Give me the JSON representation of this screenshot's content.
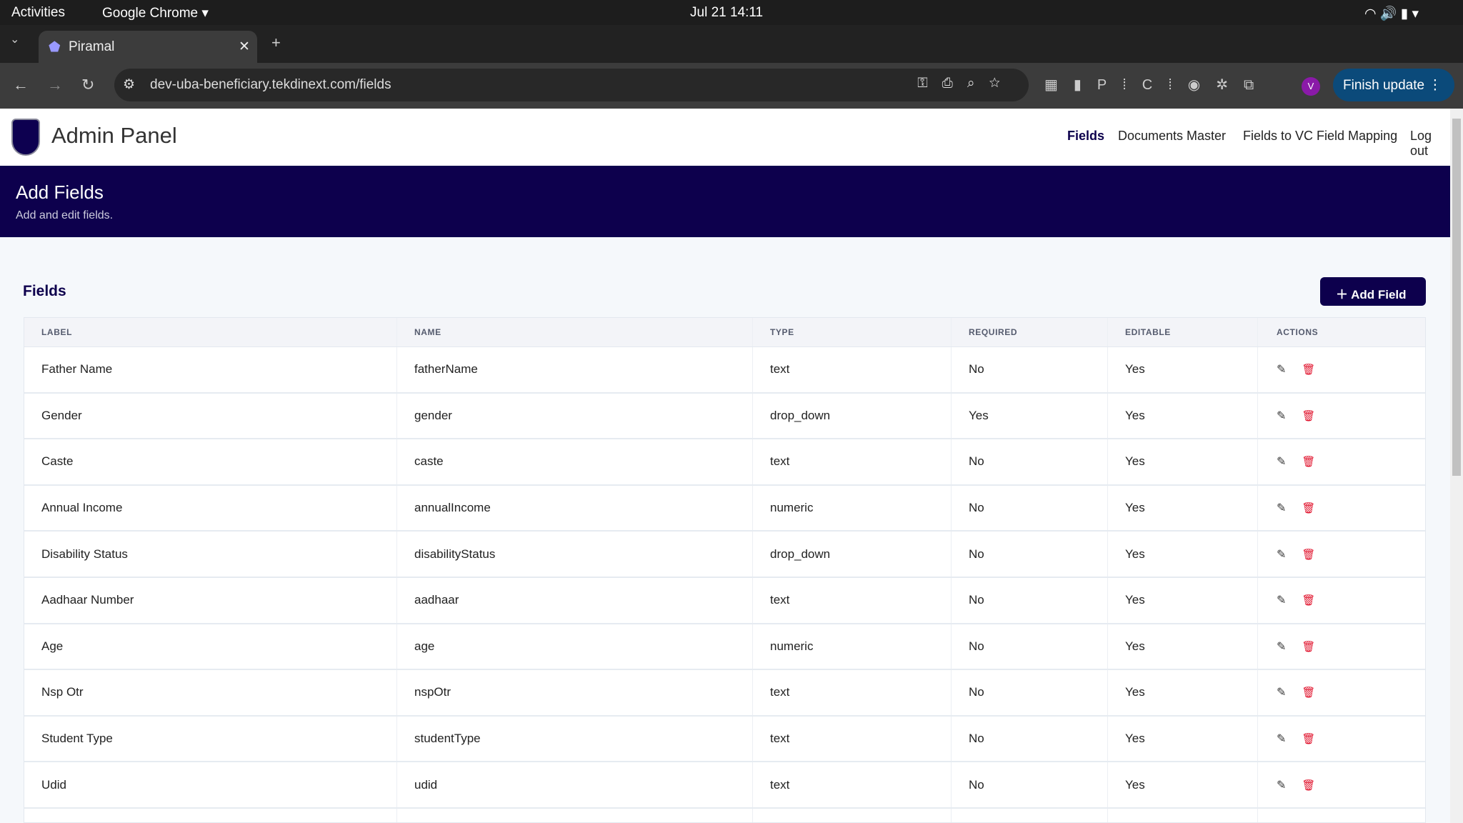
{
  "os": {
    "activities": "Activities",
    "app": "Google Chrome ▾",
    "clock": "Jul 21  14:11"
  },
  "browser": {
    "tab_title": "Piramal",
    "url": "dev-uba-beneficiary.tekdinext.com/fields",
    "finish_update": "Finish update",
    "profile": "V"
  },
  "header": {
    "title": "Admin Panel",
    "nav": [
      "Fields",
      "Documents Master",
      "Fields to VC Field Mapping",
      "Log out"
    ]
  },
  "banner": {
    "title": "Add Fields",
    "subtitle": "Add and edit fields."
  },
  "section": {
    "title": "Fields",
    "add_button": "Add Field"
  },
  "table": {
    "columns": [
      "LABEL",
      "NAME",
      "TYPE",
      "REQUIRED",
      "EDITABLE",
      "ACTIONS"
    ],
    "rows": [
      [
        "Father Name",
        "fatherName",
        "text",
        "No",
        "Yes"
      ],
      [
        "Gender",
        "gender",
        "drop_down",
        "Yes",
        "Yes"
      ],
      [
        "Caste",
        "caste",
        "text",
        "No",
        "Yes"
      ],
      [
        "Annual Income",
        "annualIncome",
        "numeric",
        "No",
        "Yes"
      ],
      [
        "Disability Status",
        "disabilityStatus",
        "drop_down",
        "No",
        "Yes"
      ],
      [
        "Aadhaar Number",
        "aadhaar",
        "text",
        "No",
        "Yes"
      ],
      [
        "Age",
        "age",
        "numeric",
        "No",
        "Yes"
      ],
      [
        "Nsp Otr",
        "nspOtr",
        "text",
        "No",
        "Yes"
      ],
      [
        "Student Type",
        "studentType",
        "text",
        "No",
        "Yes"
      ],
      [
        "Udid",
        "udid",
        "text",
        "No",
        "Yes"
      ]
    ]
  },
  "colors": {
    "brand": "#0d004d",
    "delete": "#e0102a"
  }
}
